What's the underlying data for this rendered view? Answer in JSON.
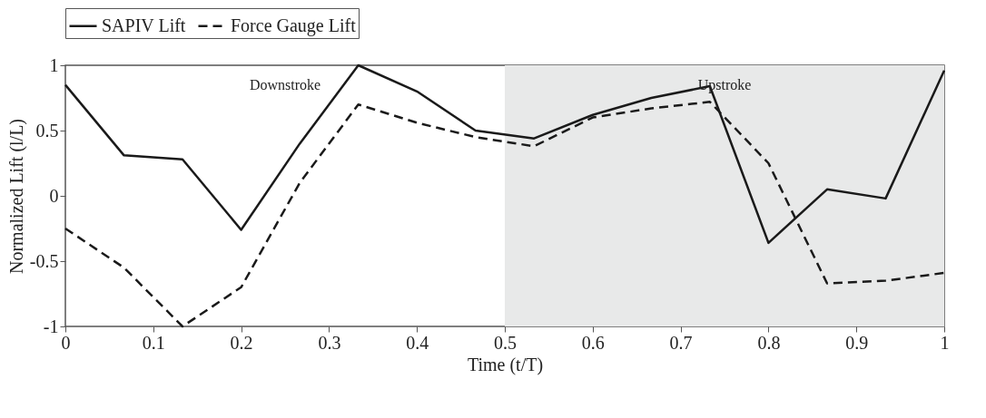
{
  "chart_data": {
    "type": "line",
    "xlabel": "Time (t/T)",
    "ylabel": "Normalized Lift (l/L)",
    "x": [
      0,
      0.0667,
      0.1333,
      0.2,
      0.2667,
      0.3333,
      0.4,
      0.4667,
      0.5333,
      0.6,
      0.6667,
      0.7333,
      0.8,
      0.8667,
      0.9333,
      1
    ],
    "series": [
      {
        "name": "SAPIV Lift",
        "color": "#1a1a1a",
        "line_style": "solid",
        "values": [
          0.85,
          0.31,
          0.28,
          -0.26,
          0.4,
          1.0,
          0.8,
          0.5,
          0.44,
          0.62,
          0.75,
          0.84,
          -0.36,
          0.05,
          -0.02,
          0.96
        ]
      },
      {
        "name": "Force Gauge Lift",
        "color": "#1a1a1a",
        "line_style": "dashed",
        "values": [
          -0.25,
          -0.55,
          -1.0,
          -0.7,
          0.1,
          0.7,
          0.56,
          0.45,
          0.38,
          0.6,
          0.67,
          0.72,
          0.25,
          -0.67,
          -0.65,
          -0.59
        ]
      }
    ],
    "xlim": [
      0,
      1
    ],
    "xticks": [
      0,
      0.1,
      0.2,
      0.3,
      0.4,
      0.5,
      0.6,
      0.7,
      0.8,
      0.9,
      1
    ],
    "ylim": [
      -1,
      1
    ],
    "yticks": [
      -1,
      -0.5,
      0,
      0.5,
      1
    ],
    "bands": [
      {
        "axis": "x",
        "from": 0.5,
        "to": 1,
        "color": "#e8e9e9"
      }
    ],
    "annotations": [
      "Downstroke",
      "Upstroke"
    ],
    "legend": "top",
    "grid": false,
    "marker": "none"
  }
}
